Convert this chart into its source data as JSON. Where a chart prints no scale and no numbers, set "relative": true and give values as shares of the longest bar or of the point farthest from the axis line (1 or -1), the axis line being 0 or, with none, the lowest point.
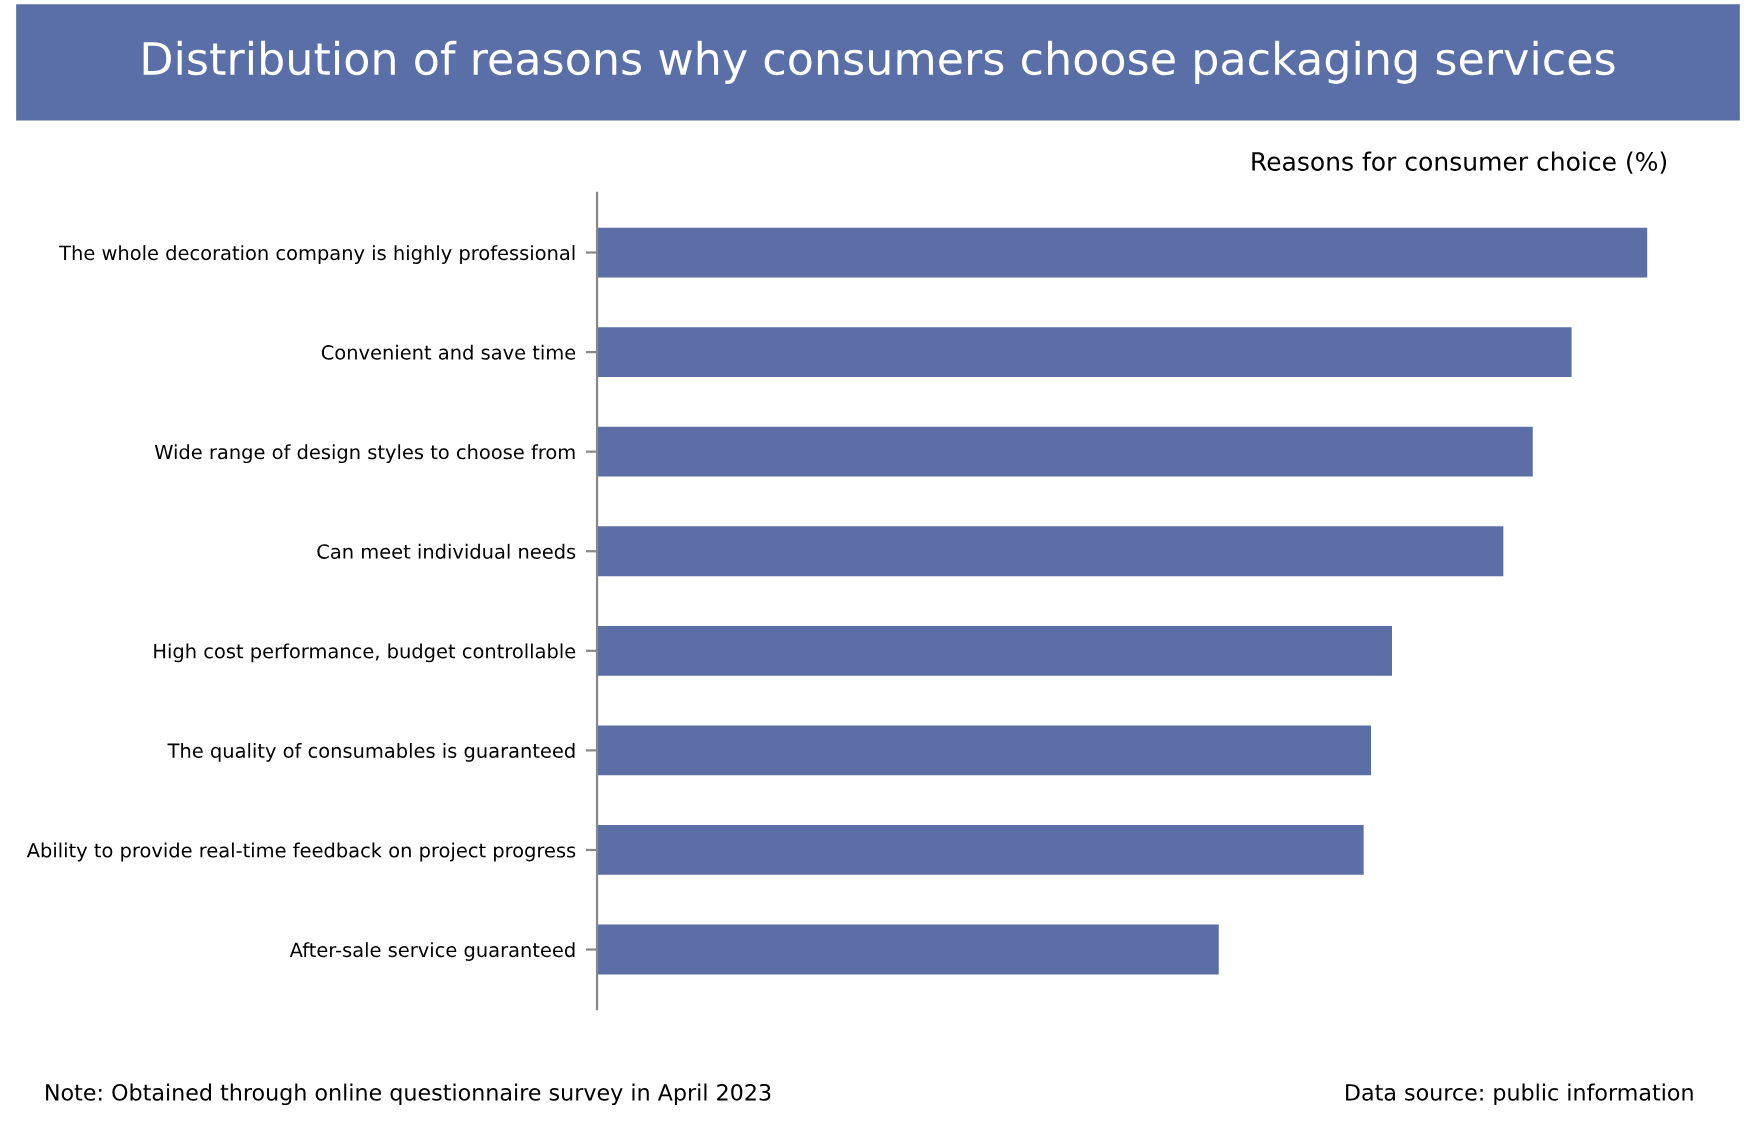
{
  "chart_data": {
    "type": "bar",
    "orientation": "horizontal",
    "relative": true,
    "title": "Distribution of reasons why consumers choose packaging services",
    "xlabel": "Reasons for consumer choice (%)",
    "categories": [
      "The whole decoration company is highly professional",
      "Convenient and save time",
      "Wide range of design styles to choose from",
      "Can meet individual needs",
      "High cost performance, budget controllable",
      "The quality of consumables is guaranteed",
      "Ability to provide real-time feedback on project progress",
      "After-sale service guaranteed"
    ],
    "values": [
      1,
      0.928,
      0.891,
      0.863,
      0.757,
      0.737,
      0.73,
      0.592
    ],
    "color": "#5b6ea6",
    "grid": false,
    "legend": false,
    "annotations": [
      "Note: Obtained through online questionnaire survey in April 2023",
      "Data source: public information"
    ]
  }
}
